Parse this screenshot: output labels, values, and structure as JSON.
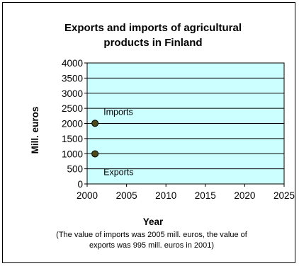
{
  "chart_data": {
    "type": "scatter",
    "title_lines": [
      "Exports and imports of agricultural",
      "products in Finland"
    ],
    "xlabel": "Year",
    "ylabel": "Mill. euros",
    "xlim": [
      2000,
      2025
    ],
    "ylim": [
      0,
      4000
    ],
    "xticks": [
      2000,
      2005,
      2010,
      2015,
      2020,
      2025
    ],
    "yticks": [
      0,
      500,
      1000,
      1500,
      2000,
      2500,
      3000,
      3500,
      4000
    ],
    "grid": true,
    "plot_background": "#ccffff",
    "marker_color": "#4a4a1a",
    "series": [
      {
        "name": "Imports",
        "x": [
          2001
        ],
        "y": [
          2005
        ]
      },
      {
        "name": "Exports",
        "x": [
          2001
        ],
        "y": [
          995
        ]
      }
    ],
    "note_lines": [
      "(The value of imports was 2005 mill. euros, the value of",
      "exports was 995 mill. euros in 2001)"
    ]
  }
}
